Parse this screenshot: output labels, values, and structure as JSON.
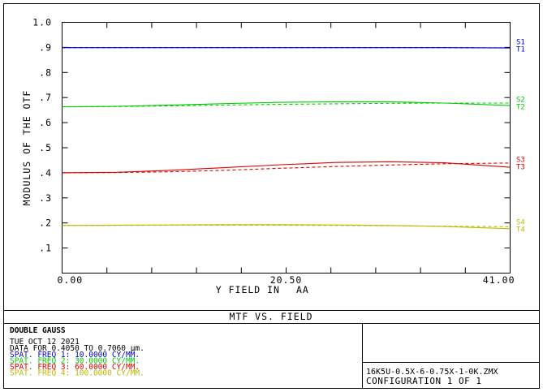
{
  "chart_data": {
    "type": "line",
    "title": "MTF VS. FIELD",
    "xlabel": "Y FIELD IN",
    "xunit": "AA",
    "ylabel": "MODULUS OF THE OTF",
    "xlim": [
      0.0,
      41.0
    ],
    "ylim": [
      0.0,
      1.0
    ],
    "x_tick_labels": [
      "0.00",
      "20.50",
      "41.00"
    ],
    "y_tick_labels": [
      "1.0",
      ".9",
      ".8",
      ".7",
      ".6",
      ".5",
      ".4",
      ".3",
      ".2",
      ".1"
    ],
    "x_ticks_count": 10,
    "x": [
      0,
      5,
      10,
      15,
      20,
      25,
      30,
      35,
      41
    ],
    "series": [
      {
        "name": "S1",
        "color": "#0000cc",
        "dash": false,
        "values": [
          0.899,
          0.899,
          0.899,
          0.899,
          0.899,
          0.899,
          0.899,
          0.899,
          0.898
        ]
      },
      {
        "name": "T1",
        "color": "#0000cc",
        "dash": true,
        "values": [
          0.899,
          0.899,
          0.899,
          0.899,
          0.899,
          0.899,
          0.899,
          0.899,
          0.898
        ]
      },
      {
        "name": "S2",
        "color": "#00cc00",
        "dash": false,
        "values": [
          0.663,
          0.665,
          0.67,
          0.676,
          0.681,
          0.683,
          0.683,
          0.678,
          0.668
        ]
      },
      {
        "name": "T2",
        "color": "#00cc00",
        "dash": true,
        "values": [
          0.663,
          0.664,
          0.667,
          0.67,
          0.673,
          0.675,
          0.677,
          0.678,
          0.678
        ]
      },
      {
        "name": "S3",
        "color": "#dd0000",
        "dash": false,
        "values": [
          0.4,
          0.402,
          0.41,
          0.421,
          0.432,
          0.441,
          0.444,
          0.44,
          0.422
        ]
      },
      {
        "name": "T3",
        "color": "#dd0000",
        "dash": true,
        "values": [
          0.4,
          0.401,
          0.404,
          0.41,
          0.418,
          0.425,
          0.431,
          0.436,
          0.439
        ]
      },
      {
        "name": "S4",
        "color": "#bbbb00",
        "dash": false,
        "values": [
          0.19,
          0.191,
          0.192,
          0.193,
          0.193,
          0.192,
          0.19,
          0.186,
          0.177
        ]
      },
      {
        "name": "T4",
        "color": "#bbbb00",
        "dash": true,
        "values": [
          0.19,
          0.19,
          0.191,
          0.191,
          0.191,
          0.19,
          0.189,
          0.187,
          0.185
        ]
      }
    ],
    "legend_labels": [
      {
        "top": "S1",
        "bottom": "T1",
        "color": "#0000cc",
        "y": 0.899
      },
      {
        "top": "S2",
        "bottom": "T2",
        "color": "#00cc00",
        "y": 0.67
      },
      {
        "top": "S3",
        "bottom": "T3",
        "color": "#dd0000",
        "y": 0.43
      },
      {
        "top": "S4",
        "bottom": "T4",
        "color": "#bbbb00",
        "y": 0.182
      }
    ]
  },
  "info": {
    "design_name": "DOUBLE GAUSS",
    "date": "TUE OCT 12 2021",
    "data_line": "DATA FOR 0.4050 TO 0.7060 µm.",
    "freq_lines": [
      {
        "text": "SPAT. FREQ 1:  10.0000 CY/MM.",
        "color": "#0000cc"
      },
      {
        "text": "SPAT. FREQ 2:  30.0000 CY/MM.",
        "color": "#00cc00"
      },
      {
        "text": "SPAT. FREQ 3:  60.0000 CY/MM.",
        "color": "#dd0000"
      },
      {
        "text": "SPAT. FREQ 4: 100.0000 CY/MM.",
        "color": "#bbbb00"
      }
    ],
    "filename": "16K5U-0.5X-6-0.75X-1-0K.ZMX",
    "configuration": "CONFIGURATION 1 OF 1"
  }
}
